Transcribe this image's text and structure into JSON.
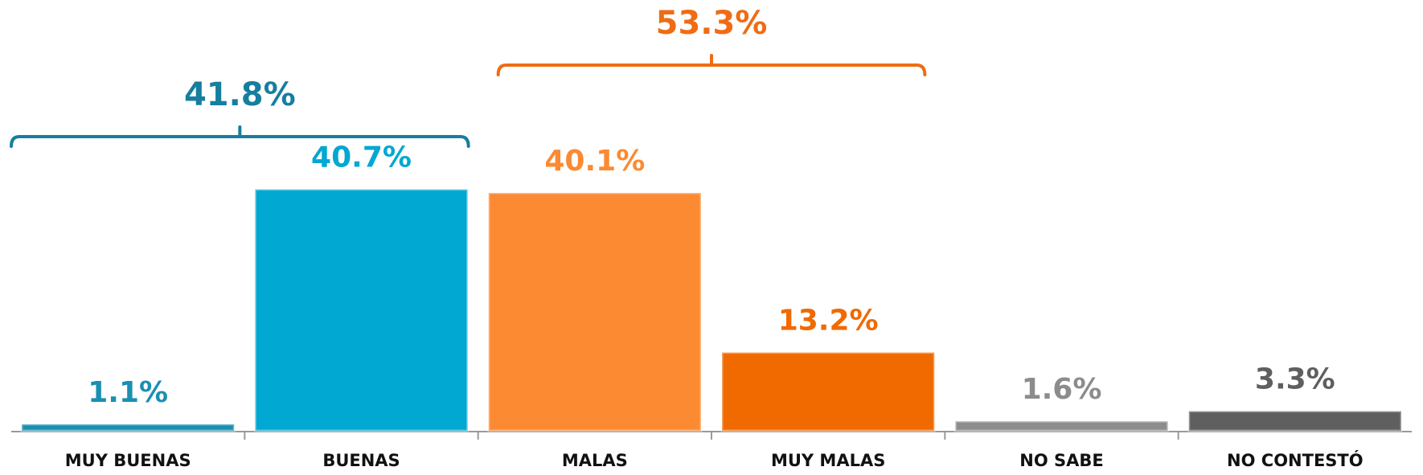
{
  "chart_data": {
    "type": "bar",
    "categories": [
      "MUY BUENAS",
      "BUENAS",
      "MALAS",
      "MUY MALAS",
      "NO SABE",
      "NO CONTESTÓ"
    ],
    "values": [
      1.1,
      40.7,
      40.1,
      13.2,
      1.6,
      3.3
    ],
    "value_labels": [
      "1.1%",
      "40.7%",
      "40.1%",
      "13.2%",
      "1.6%",
      "3.3%"
    ],
    "colors": [
      "#1a8fb2",
      "#00a8d2",
      "#fb8a32",
      "#f06a00",
      "#8c8c8c",
      "#5f5f5f"
    ],
    "ylim": [
      0,
      50
    ],
    "groups": [
      {
        "label": "41.8%",
        "members": [
          0,
          1
        ],
        "color": "#167e9f"
      },
      {
        "label": "53.3%",
        "members": [
          2,
          3
        ],
        "color": "#ef6c14"
      }
    ]
  }
}
